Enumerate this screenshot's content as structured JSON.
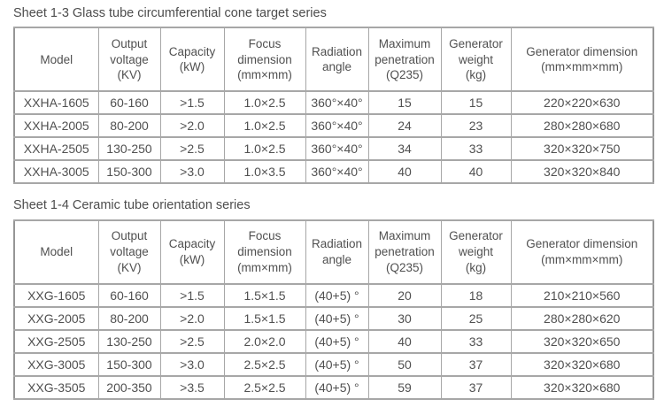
{
  "page": {
    "background": "#ffffff",
    "text_color": "#4f4f4f",
    "grid_color": "#a7a7a7"
  },
  "column_keys": [
    "model",
    "output-voltage",
    "capacity",
    "focus-dimension",
    "radiation-angle",
    "maximum-penetration",
    "generator-weight",
    "generator-dimension"
  ],
  "tables": [
    {
      "title": "Sheet 1-3 Glass tube circumferential cone target series",
      "headers": [
        "Model",
        "Output\nvoltage\n(KV)",
        "Capacity\n(kW)",
        "Focus\ndimension\n(mm×mm)",
        "Radiation\nangle",
        "Maximum\npenetration\n(Q235)",
        "Generator\nweight\n(kg)",
        "Generator dimension\n(mm×mm×mm)"
      ],
      "rows": [
        [
          "XXHA-1605",
          "60-160",
          ">1.5",
          "1.0×2.5",
          "360°×40°",
          "15",
          "15",
          "220×220×630"
        ],
        [
          "XXHA-2005",
          "80-200",
          ">2.0",
          "1.0×2.5",
          "360°×40°",
          "24",
          "23",
          "280×280×680"
        ],
        [
          "XXHA-2505",
          "130-250",
          ">2.5",
          "1.0×2.5",
          "360°×40°",
          "34",
          "33",
          "320×320×750"
        ],
        [
          "XXHA-3005",
          "150-300",
          ">3.0",
          "1.0×3.5",
          "360°×40°",
          "40",
          "40",
          "320×320×840"
        ]
      ]
    },
    {
      "title": "Sheet 1-4 Ceramic tube orientation series",
      "headers": [
        "Model",
        "Output\nvoltage\n(KV)",
        "Capacity\n(kW)",
        "Focus\ndimension\n(mm×mm)",
        "Radiation\nangle",
        "Maximum\npenetration\n(Q235)",
        "Generator\nweight\n(kg)",
        "Generator dimension\n(mm×mm×mm)"
      ],
      "rows": [
        [
          "XXG-1605",
          "60-160",
          ">1.5",
          "1.5×1.5",
          "(40+5) °",
          "20",
          "18",
          "210×210×560"
        ],
        [
          "XXG-2005",
          "80-200",
          ">2.0",
          "1.5×1.5",
          "(40+5) °",
          "30",
          "25",
          "280×280×620"
        ],
        [
          "XXG-2505",
          "130-250",
          ">2.5",
          "2.0×2.0",
          "(40+5) °",
          "40",
          "33",
          "320×320×650"
        ],
        [
          "XXG-3005",
          "150-300",
          ">3.0",
          "2.5×2.5",
          "(40+5) °",
          "50",
          "37",
          "320×320×680"
        ],
        [
          "XXG-3505",
          "200-350",
          ">3.5",
          "2.5×2.5",
          "(40+5) °",
          "59",
          "37",
          "320×320×680"
        ]
      ]
    }
  ]
}
